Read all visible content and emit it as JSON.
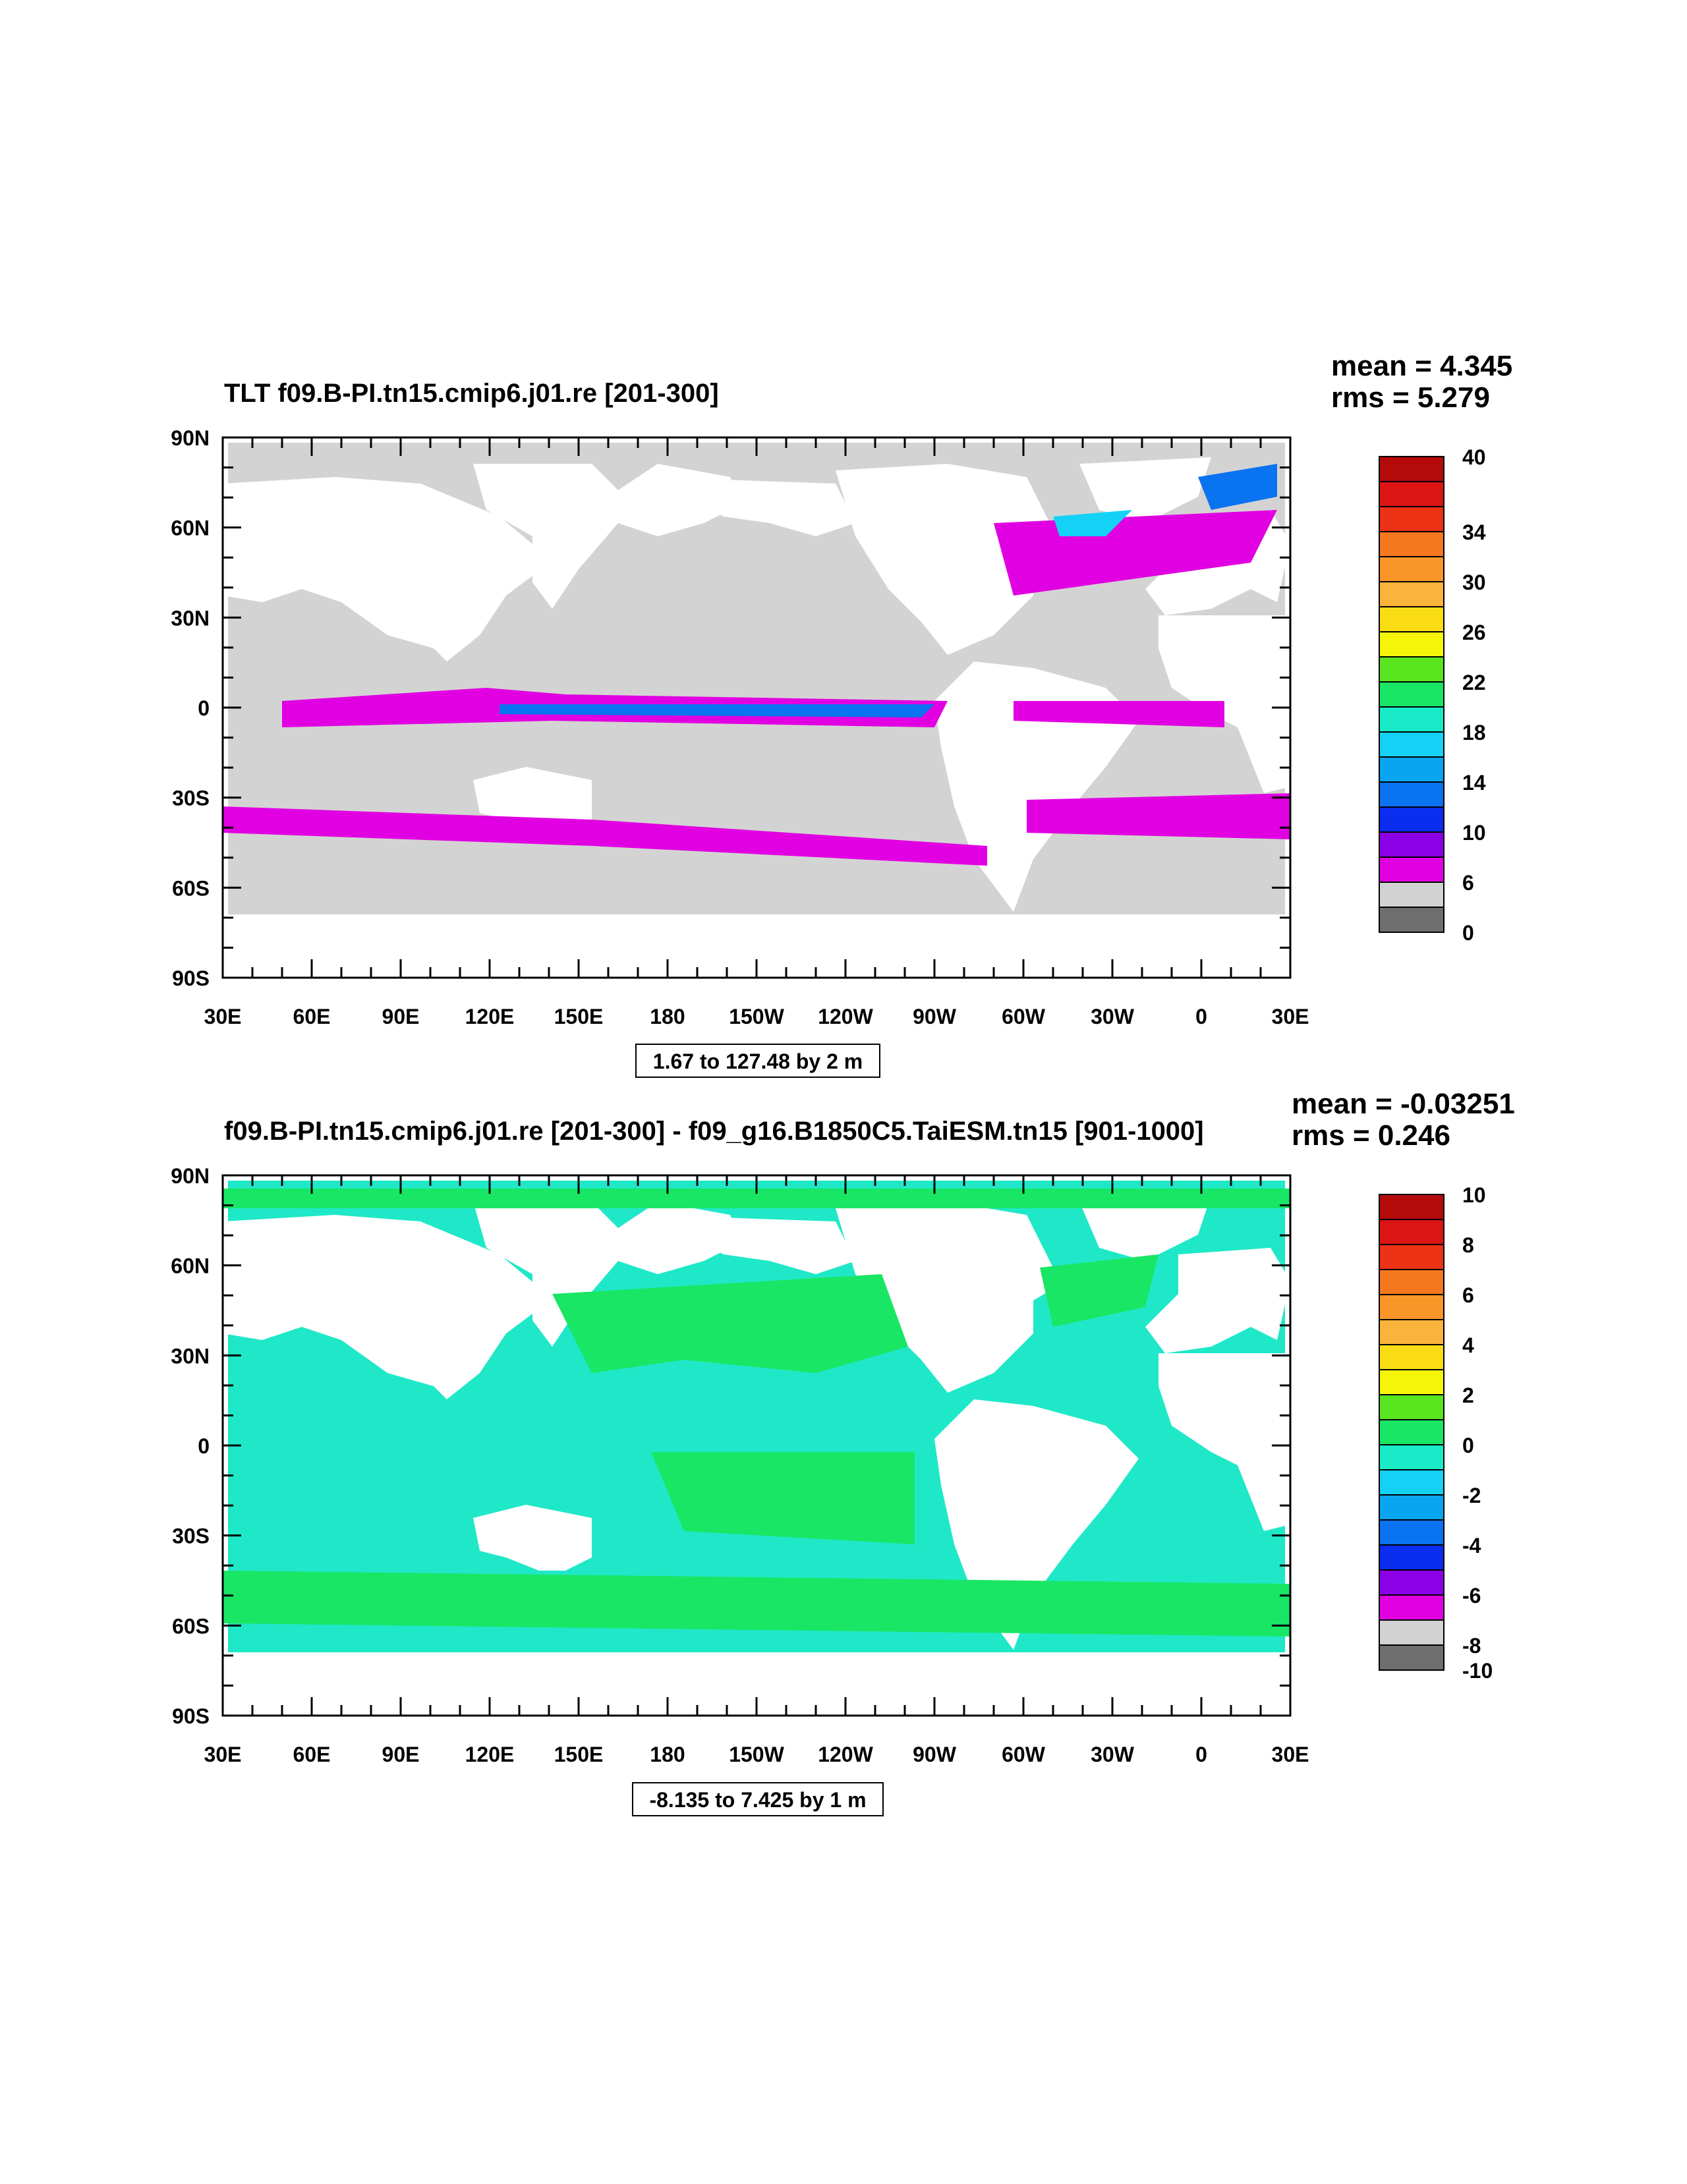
{
  "colors": {
    "land": "#ffffff",
    "ocean_top": "#d3d3d3",
    "ocean_bottom": "#1fe8c8",
    "plot_frame": "#000000"
  },
  "panels": [
    {
      "id": "top",
      "title": "TLT f09.B-PI.tn15.cmip6.j01.re [201-300]",
      "mean_text": "mean = 4.345",
      "rms_text": "rms = 5.279",
      "range_text": "1.67 to 127.48 by 2 m",
      "lat_labels": [
        "90N",
        "60N",
        "30N",
        "0",
        "30S",
        "60S",
        "90S"
      ],
      "lon_labels": [
        "30E",
        "60E",
        "90E",
        "120E",
        "150E",
        "180",
        "150W",
        "120W",
        "90W",
        "60W",
        "30W",
        "0",
        "30E"
      ],
      "colorbar_colors": [
        "#6e6e6e",
        "#d2d2d2",
        "#e100e1",
        "#8c00e6",
        "#0a2df0",
        "#0a73f0",
        "#0aa5f0",
        "#14d2f5",
        "#19ebc8",
        "#19e664",
        "#5ae61e",
        "#f5f50a",
        "#fadc14",
        "#fab43c",
        "#fa9628",
        "#f5781e",
        "#eb3214",
        "#dc1414",
        "#b40a0a"
      ],
      "colorbar_labels": [
        "0",
        "6",
        "10",
        "14",
        "18",
        "22",
        "26",
        "30",
        "34",
        "40"
      ],
      "colorbar_label_positions": [
        0,
        2,
        4,
        6,
        8,
        10,
        12,
        14,
        16,
        19
      ]
    },
    {
      "id": "bottom",
      "title": "f09.B-PI.tn15.cmip6.j01.re [201-300] - f09_g16.B1850C5.TaiESM.tn15 [901-1000]",
      "mean_text": "mean = -0.03251",
      "rms_text": "rms = 0.246",
      "range_text": "-8.135 to 7.425 by 1 m",
      "lat_labels": [
        "90N",
        "60N",
        "30N",
        "0",
        "30S",
        "60S",
        "90S"
      ],
      "lon_labels": [
        "30E",
        "60E",
        "90E",
        "120E",
        "150E",
        "180",
        "150W",
        "120W",
        "90W",
        "60W",
        "30W",
        "0",
        "30E"
      ],
      "colorbar_colors": [
        "#6e6e6e",
        "#d2d2d2",
        "#e100e1",
        "#8c00e6",
        "#0a2df0",
        "#0a73f0",
        "#0aa5f0",
        "#14d2f5",
        "#19ebc8",
        "#19e664",
        "#5ae61e",
        "#f5f50a",
        "#fadc14",
        "#fab43c",
        "#fa9628",
        "#f5781e",
        "#eb3214",
        "#dc1414",
        "#b40a0a"
      ],
      "colorbar_labels": [
        "-10",
        "-8",
        "-6",
        "-4",
        "-2",
        "0",
        "2",
        "4",
        "6",
        "8",
        "10"
      ],
      "colorbar_label_positions": [
        0,
        1,
        3,
        5,
        7,
        9,
        11,
        13,
        15,
        17,
        19
      ]
    }
  ]
}
